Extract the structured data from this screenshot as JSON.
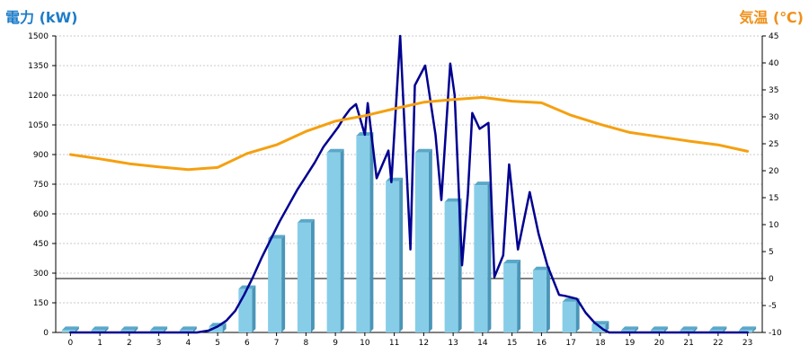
{
  "chart_data": {
    "type": "bar",
    "title_left": "電力 (kW)",
    "title_right": "気温 (℃)",
    "categories": [
      "0",
      "1",
      "2",
      "3",
      "4",
      "5",
      "6",
      "7",
      "8",
      "9",
      "10",
      "11",
      "12",
      "13",
      "14",
      "15",
      "16",
      "17",
      "18",
      "19",
      "20",
      "21",
      "22",
      "23"
    ],
    "ylim": [
      0,
      1500
    ],
    "y_ticks": [
      "0",
      "150",
      "300",
      "450",
      "600",
      "750",
      "900",
      "1050",
      "1200",
      "1350",
      "1500"
    ],
    "y2lim": [
      -10,
      45
    ],
    "y2_ticks": [
      "-10",
      "-5",
      "0",
      "5",
      "10",
      "15",
      "20",
      "25",
      "30",
      "35",
      "40",
      "45"
    ],
    "grid": true,
    "series": [
      {
        "kind": "bar",
        "color": "#87cde8",
        "values": [
          12,
          12,
          12,
          12,
          12,
          30,
          220,
          475,
          555,
          910,
          995,
          765,
          910,
          660,
          745,
          350,
          315,
          155,
          40,
          12,
          12,
          12,
          12,
          12
        ]
      },
      {
        "kind": "line",
        "axis": "left",
        "color": "#000090",
        "points": [
          [
            0,
            0
          ],
          [
            4,
            0
          ],
          [
            4.3,
            0
          ],
          [
            4.7,
            10
          ],
          [
            5,
            30
          ],
          [
            5.3,
            60
          ],
          [
            5.6,
            110
          ],
          [
            5.9,
            190
          ],
          [
            6.2,
            280
          ],
          [
            6.5,
            380
          ],
          [
            6.8,
            470
          ],
          [
            7.1,
            560
          ],
          [
            7.4,
            640
          ],
          [
            7.7,
            720
          ],
          [
            8,
            790
          ],
          [
            8.3,
            860
          ],
          [
            8.6,
            940
          ],
          [
            8.9,
            1000
          ],
          [
            9.1,
            1040
          ],
          [
            9.3,
            1090
          ],
          [
            9.5,
            1130
          ],
          [
            9.7,
            1155
          ],
          [
            10,
            1000
          ],
          [
            10.1,
            1160
          ],
          [
            10.4,
            780
          ],
          [
            10.8,
            920
          ],
          [
            10.9,
            760
          ],
          [
            11.2,
            1500
          ],
          [
            11.55,
            420
          ],
          [
            11.7,
            1250
          ],
          [
            12.05,
            1350
          ],
          [
            12.4,
            1000
          ],
          [
            12.6,
            670
          ],
          [
            12.9,
            1360
          ],
          [
            13.05,
            1200
          ],
          [
            13.3,
            340
          ],
          [
            13.5,
            700
          ],
          [
            13.65,
            1110
          ],
          [
            13.9,
            1030
          ],
          [
            14.2,
            1060
          ],
          [
            14.4,
            280
          ],
          [
            14.7,
            390
          ],
          [
            14.9,
            850
          ],
          [
            15.2,
            420
          ],
          [
            15.6,
            710
          ],
          [
            15.9,
            500
          ],
          [
            16.2,
            340
          ],
          [
            16.6,
            190
          ],
          [
            16.8,
            185
          ],
          [
            17.2,
            170
          ],
          [
            17.5,
            100
          ],
          [
            17.8,
            50
          ],
          [
            18.1,
            15
          ],
          [
            18.3,
            0
          ],
          [
            23,
            0
          ]
        ]
      },
      {
        "kind": "line",
        "axis": "right",
        "color": "#f5a010",
        "points": [
          [
            0,
            23
          ],
          [
            1,
            22.2
          ],
          [
            2,
            21.3
          ],
          [
            3,
            20.7
          ],
          [
            4,
            20.2
          ],
          [
            5,
            20.6
          ],
          [
            6,
            23.2
          ],
          [
            7,
            24.8
          ],
          [
            8,
            27.3
          ],
          [
            9,
            29.2
          ],
          [
            10,
            30.2
          ],
          [
            11,
            31.5
          ],
          [
            12,
            32.7
          ],
          [
            13,
            33.2
          ],
          [
            14,
            33.6
          ],
          [
            15,
            32.9
          ],
          [
            16,
            32.6
          ],
          [
            17,
            30.3
          ],
          [
            18,
            28.6
          ],
          [
            19,
            27.1
          ],
          [
            20,
            26.3
          ],
          [
            21,
            25.5
          ],
          [
            22,
            24.8
          ],
          [
            23,
            23.6
          ]
        ]
      }
    ]
  }
}
